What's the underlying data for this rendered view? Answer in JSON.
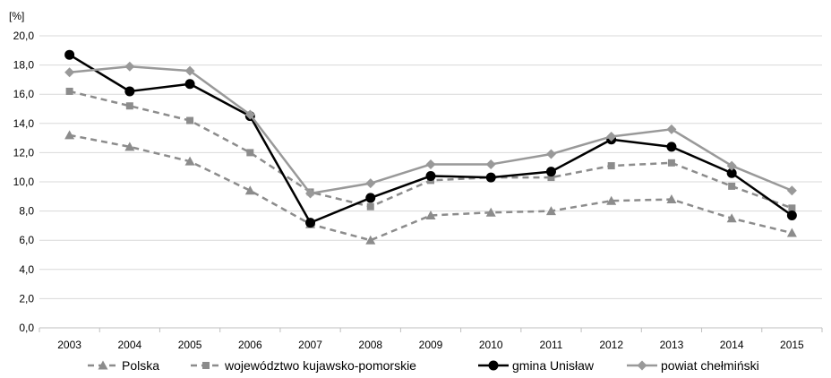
{
  "chart_data": {
    "type": "line",
    "title": "",
    "xlabel": "",
    "ylabel": "[%]",
    "ylim": [
      0,
      20
    ],
    "yticks": [
      "0,0",
      "2,0",
      "4,0",
      "6,0",
      "8,0",
      "10,0",
      "12,0",
      "14,0",
      "16,0",
      "18,0",
      "20,0"
    ],
    "grid": true,
    "legend_position": "bottom",
    "categories": [
      "2003",
      "2004",
      "2005",
      "2006",
      "2007",
      "2008",
      "2009",
      "2010",
      "2011",
      "2012",
      "2013",
      "2014",
      "2015"
    ],
    "series": [
      {
        "name": "Polska",
        "color": "#8c8c8c",
        "line": "dashed",
        "marker": "triangle",
        "values": [
          13.2,
          12.4,
          11.4,
          9.4,
          7.1,
          6.0,
          7.7,
          7.9,
          8.0,
          8.7,
          8.8,
          7.5,
          6.5
        ]
      },
      {
        "name": "województwo kujawsko-pomorskie",
        "color": "#8c8c8c",
        "line": "dashed",
        "marker": "square",
        "values": [
          16.2,
          15.2,
          14.2,
          12.0,
          9.3,
          8.3,
          10.1,
          10.3,
          10.3,
          11.1,
          11.3,
          9.7,
          8.2
        ]
      },
      {
        "name": "gmina Unisław",
        "color": "#000000",
        "line": "solid",
        "marker": "circle",
        "values": [
          18.7,
          16.2,
          16.7,
          14.5,
          7.2,
          8.9,
          10.4,
          10.3,
          10.7,
          12.9,
          12.4,
          10.6,
          7.7
        ]
      },
      {
        "name": "powiat chełmiński",
        "color": "#999999",
        "line": "solid",
        "marker": "diamond",
        "values": [
          17.5,
          17.9,
          17.6,
          14.6,
          9.2,
          9.9,
          11.2,
          11.2,
          11.9,
          13.1,
          13.6,
          11.1,
          9.4
        ]
      }
    ]
  }
}
